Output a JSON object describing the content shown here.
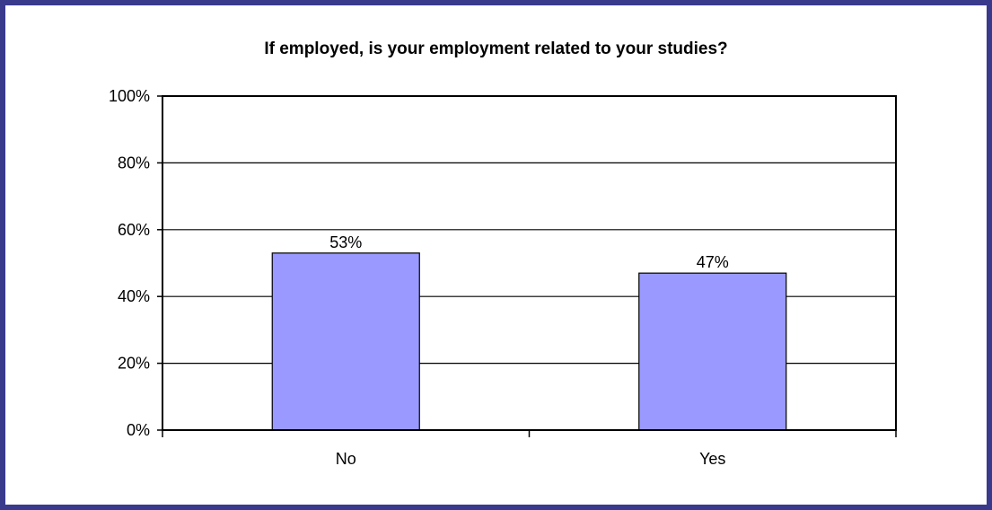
{
  "chart_data": {
    "type": "bar",
    "title": "If employed, is your employment related to your studies?",
    "categories": [
      "No",
      "Yes"
    ],
    "values": [
      53,
      47
    ],
    "data_labels": [
      "53%",
      "47%"
    ],
    "y_ticks": [
      "0%",
      "20%",
      "40%",
      "60%",
      "80%",
      "100%"
    ],
    "ylim": [
      0,
      100
    ],
    "xlabel": "",
    "ylabel": "",
    "grid": true,
    "bar_color": "#9999ff"
  },
  "colors": {
    "frame": "#3a3a8c",
    "bar": "#9999ff"
  }
}
